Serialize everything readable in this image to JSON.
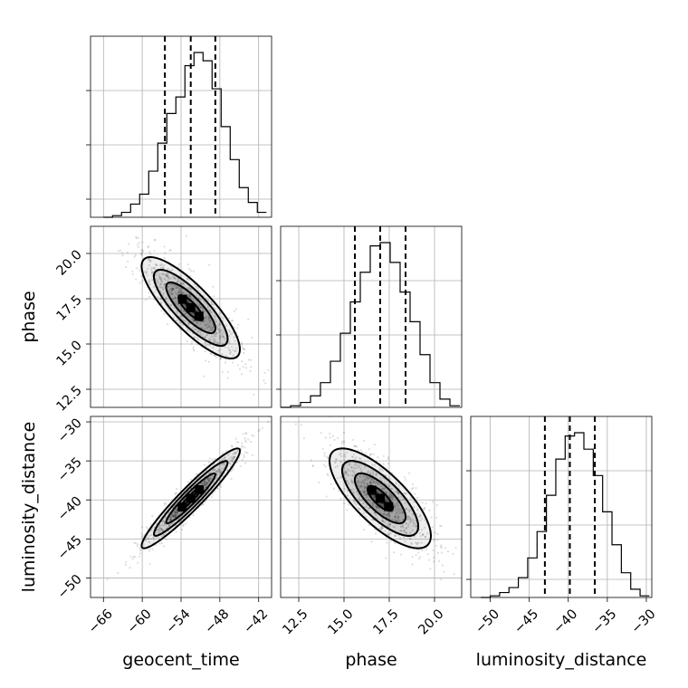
{
  "chart_data": {
    "type": "corner",
    "parameters": [
      "geocent_time",
      "phase",
      "luminosity_distance"
    ],
    "axis_labels": {
      "geocent_time": "geocent_time",
      "phase": "phase",
      "luminosity_distance": "luminosity_distance"
    },
    "ranges": {
      "geocent_time": [
        -68,
        -40
      ],
      "phase": [
        11.5,
        21.5
      ],
      "luminosity_distance": [
        -52.5,
        -29.3
      ]
    },
    "ticks": {
      "geocent_time": [
        -66,
        -60,
        -54,
        -48,
        -42
      ],
      "phase": [
        12.5,
        15.0,
        17.5,
        20.0
      ],
      "luminosity_distance": [
        -50,
        -45,
        -40,
        -35,
        -30
      ]
    },
    "tick_labels": {
      "geocent_time": [
        "−66",
        "−60",
        "−54",
        "−48",
        "−42"
      ],
      "phase": [
        "12.5",
        "15.0",
        "17.5",
        "20.0"
      ],
      "luminosity_distance": [
        "−50",
        "−45",
        "−40",
        "−35",
        "−30"
      ]
    },
    "quantiles": {
      "geocent_time": [
        -56.5,
        -52.5,
        -48.7
      ],
      "phase": [
        15.6,
        17.0,
        18.4
      ],
      "luminosity_distance": [
        -43,
        -39.8,
        -36.6
      ]
    },
    "histograms": {
      "geocent_time": {
        "edges": [
          -66,
          -64.6,
          -63.2,
          -61.8,
          -60.4,
          -59,
          -57.6,
          -56.2,
          -54.8,
          -53.4,
          -52,
          -50.6,
          -49.2,
          -47.8,
          -46.4,
          -45,
          -43.6,
          -42.2,
          -40.8
        ],
        "counts": [
          0,
          1,
          3,
          8,
          14,
          28,
          45,
          63,
          73,
          92,
          100,
          95,
          78,
          55,
          35,
          18,
          9,
          3
        ]
      },
      "phase": {
        "edges": [
          11.5,
          12.05,
          12.6,
          13.15,
          13.7,
          14.25,
          14.8,
          15.35,
          15.9,
          16.45,
          17.0,
          17.55,
          18.1,
          18.65,
          19.2,
          19.75,
          20.3,
          20.85,
          21.4
        ],
        "counts": [
          0,
          1,
          3,
          7,
          15,
          28,
          45,
          64,
          82,
          98,
          100,
          88,
          70,
          52,
          32,
          15,
          5,
          1
        ]
      },
      "luminosity_distance": {
        "edges": [
          -51.2,
          -50.0,
          -48.8,
          -47.6,
          -46.4,
          -45.2,
          -44.0,
          -42.8,
          -41.6,
          -40.4,
          -39.2,
          -38.0,
          -36.8,
          -35.6,
          -34.4,
          -33.2,
          -32.0,
          -30.8,
          -29.6
        ],
        "counts": [
          0,
          1,
          3,
          6,
          12,
          24,
          40,
          62,
          84,
          98,
          100,
          90,
          74,
          52,
          32,
          15,
          5,
          1
        ]
      }
    },
    "pairs": [
      {
        "x": "geocent_time",
        "y": "phase",
        "mean": [
          -52.5,
          17.0
        ],
        "std": [
          3.8,
          1.4
        ],
        "corr": -0.82
      },
      {
        "x": "geocent_time",
        "y": "luminosity_distance",
        "mean": [
          -52.5,
          -39.8
        ],
        "std": [
          3.8,
          3.2
        ],
        "corr": 0.95
      },
      {
        "x": "phase",
        "y": "luminosity_distance",
        "mean": [
          17.0,
          -39.8
        ],
        "std": [
          1.4,
          3.2
        ],
        "corr": -0.75
      }
    ],
    "contour_levels_sigma": [
      0.5,
      1.0,
      1.5,
      2.0
    ],
    "grid": true
  }
}
